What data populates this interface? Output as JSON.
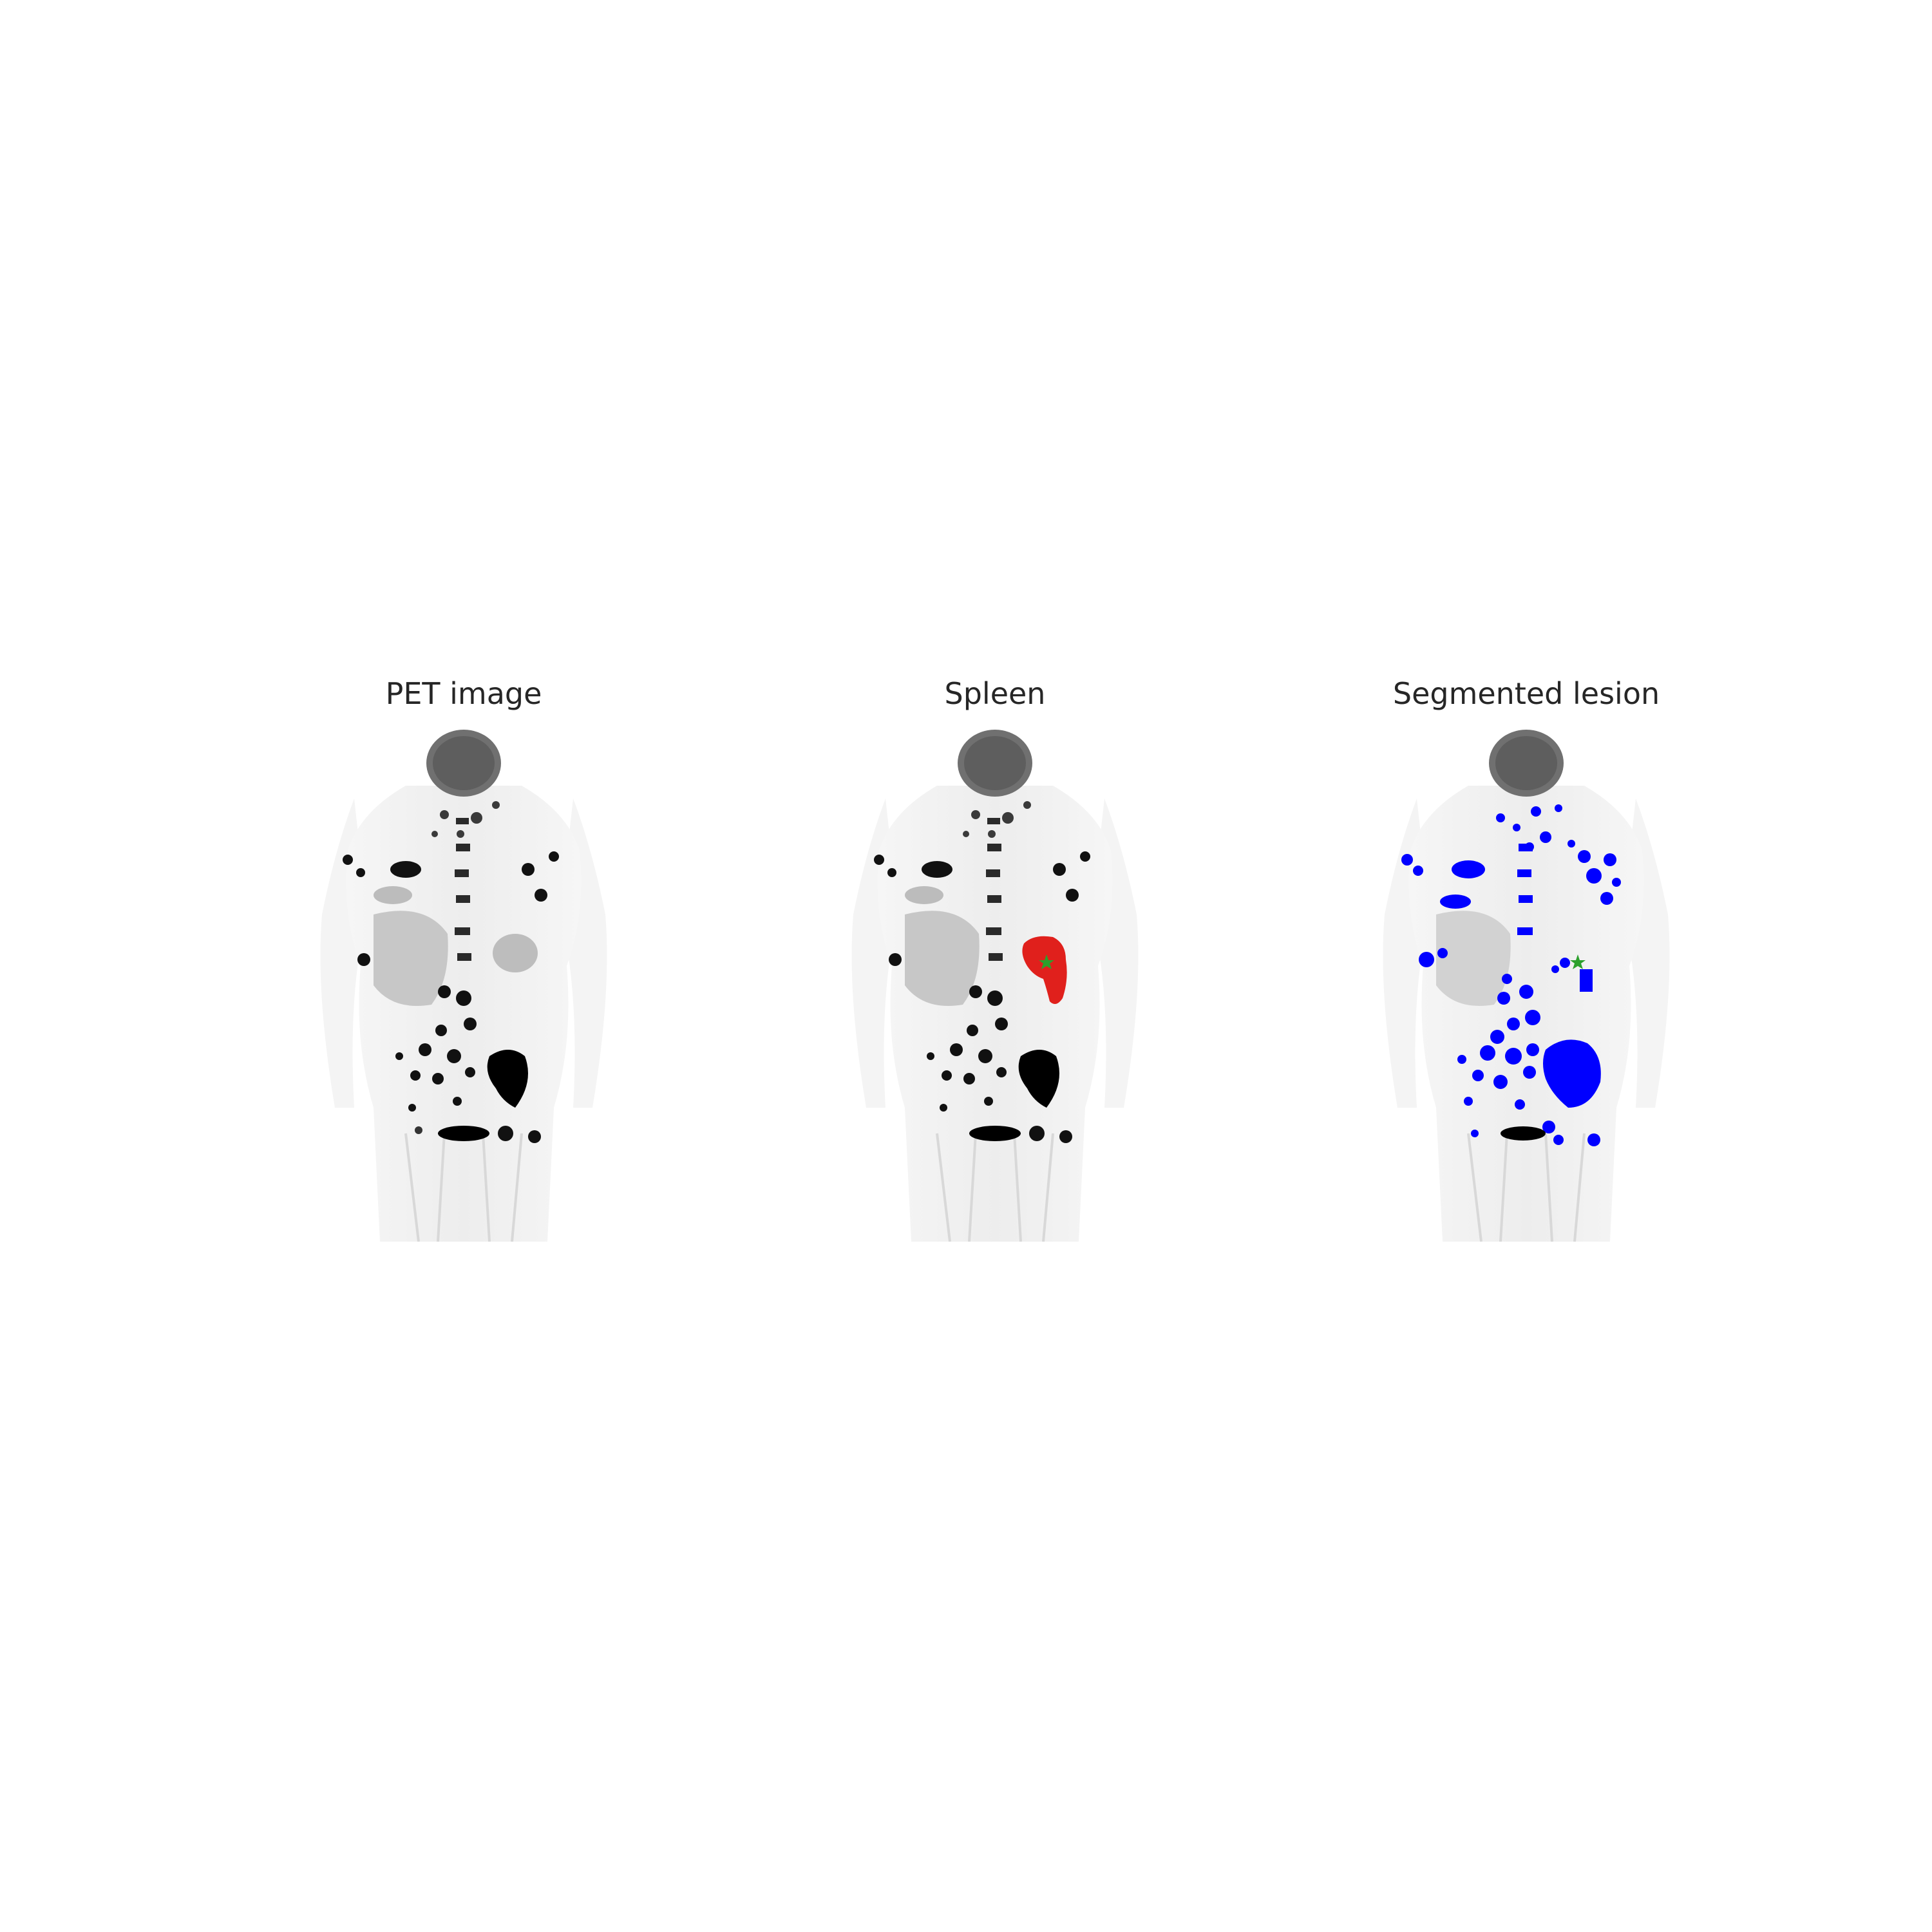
{
  "figure": {
    "panels": [
      {
        "id": "pet",
        "title": "PET image",
        "overlay": "none"
      },
      {
        "id": "spleen",
        "title": "Spleen",
        "overlay": "spleen-mask",
        "overlay_color": "#e0201c",
        "marker_color": "#2ca02c"
      },
      {
        "id": "lesion",
        "title": "Segmented lesion",
        "overlay": "lesion-mask",
        "overlay_color": "#0000ff",
        "marker_color": "#2ca02c"
      }
    ]
  }
}
